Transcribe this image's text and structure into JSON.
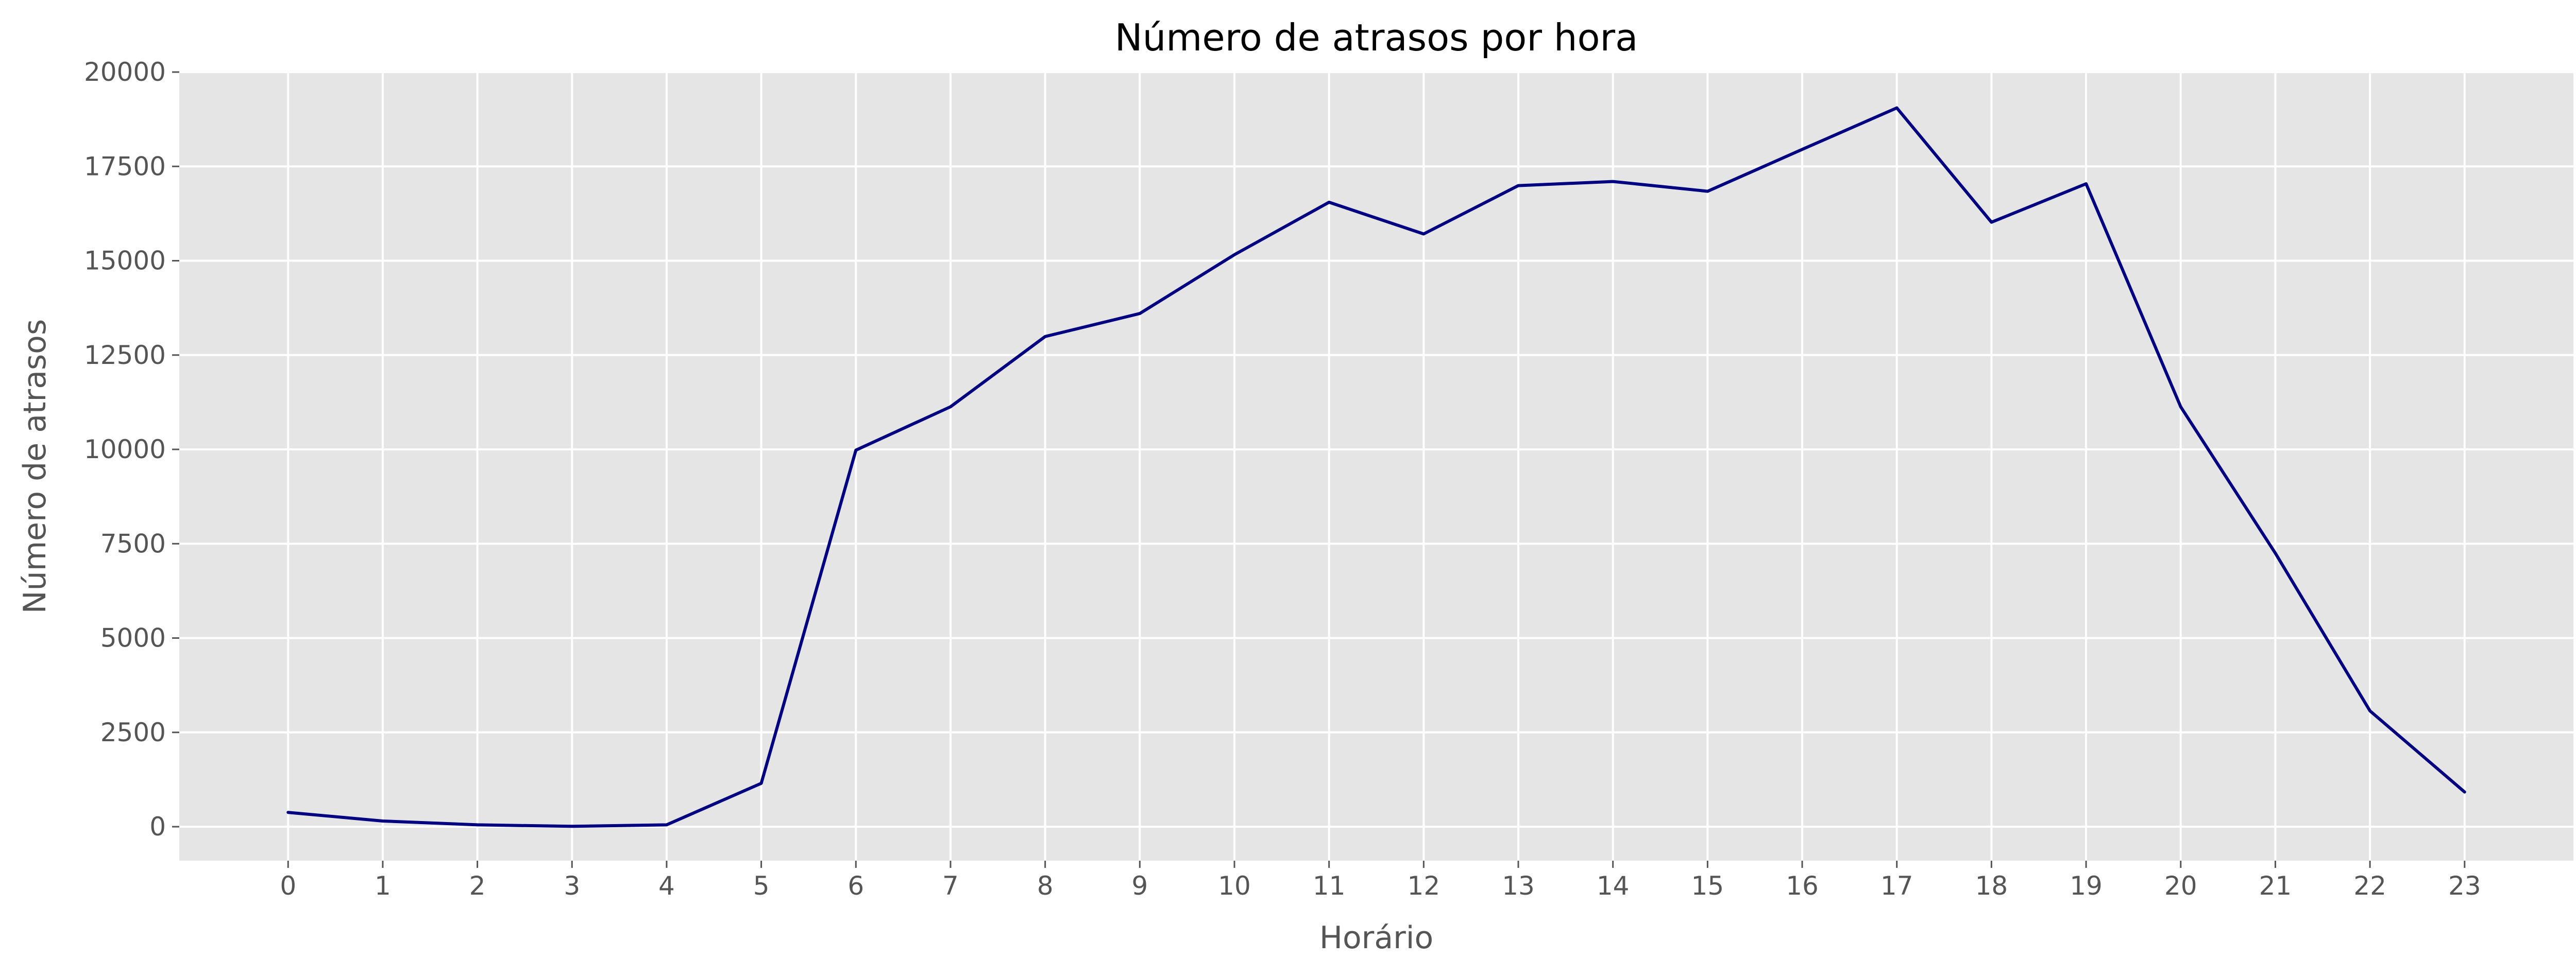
{
  "chart_data": {
    "type": "line",
    "title": "Número de atrasos por hora",
    "xlabel": "Horário",
    "ylabel": "Número de atrasos",
    "x": [
      0,
      1,
      2,
      3,
      4,
      5,
      6,
      7,
      8,
      9,
      10,
      11,
      12,
      13,
      14,
      15,
      16,
      17,
      18,
      19,
      20,
      21,
      22,
      23
    ],
    "series": [
      {
        "values": [
          380,
          150,
          50,
          10,
          50,
          1150,
          9980,
          11130,
          12990,
          13600,
          15160,
          16550,
          15710,
          16990,
          17100,
          16840,
          17950,
          19050,
          16020,
          17040,
          11130,
          7250,
          3070,
          920
        ],
        "color": "#000080"
      }
    ],
    "xticks": [
      "0",
      "1",
      "2",
      "3",
      "4",
      "5",
      "6",
      "7",
      "8",
      "9",
      "10",
      "11",
      "12",
      "13",
      "14",
      "15",
      "16",
      "17",
      "18",
      "19",
      "20",
      "21",
      "22",
      "23"
    ],
    "yticks": [
      0,
      2500,
      5000,
      7500,
      10000,
      12500,
      15000,
      17500,
      20000
    ],
    "ytick_labels": [
      "0",
      "2500",
      "5000",
      "7500",
      "10000",
      "12500",
      "15000",
      "17500",
      "20000"
    ],
    "xlim": [
      -1.15,
      24.15
    ],
    "ylim": [
      -900,
      20000
    ],
    "grid": true,
    "background": "#e5e5e5"
  }
}
